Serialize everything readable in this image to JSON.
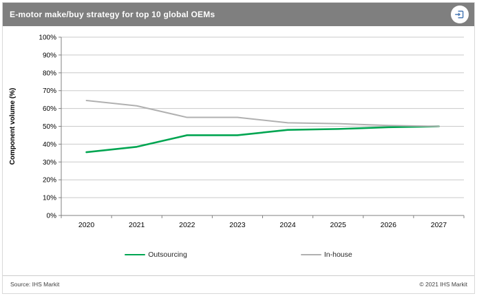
{
  "header": {
    "title": "E-motor make/buy strategy for top 10 global OEMs",
    "export_icon_color": "#4a7ab5"
  },
  "chart_data": {
    "type": "line",
    "title": "E-motor make/buy strategy for top 10 global OEMs",
    "categories": [
      "2020",
      "2021",
      "2022",
      "2023",
      "2024",
      "2025",
      "2026",
      "2027"
    ],
    "series": [
      {
        "name": "Outsourcing",
        "color": "#00a551",
        "width": 2.6,
        "values": [
          35.5,
          38.5,
          45,
          45,
          48,
          48.5,
          49.5,
          50
        ]
      },
      {
        "name": "In-house",
        "color": "#b0b0b0",
        "width": 2,
        "values": [
          64.5,
          61.5,
          55,
          55,
          52,
          51.5,
          50.5,
          50
        ]
      }
    ],
    "xlabel": "",
    "ylabel": "Component volume (%)",
    "ylim": [
      0,
      100
    ],
    "ytick_step": 10,
    "ytick_suffix": "%",
    "grid": true,
    "legend_position": "bottom"
  },
  "footer": {
    "source": "Source: IHS Markit",
    "copyright": "© 2021 IHS Markit"
  }
}
